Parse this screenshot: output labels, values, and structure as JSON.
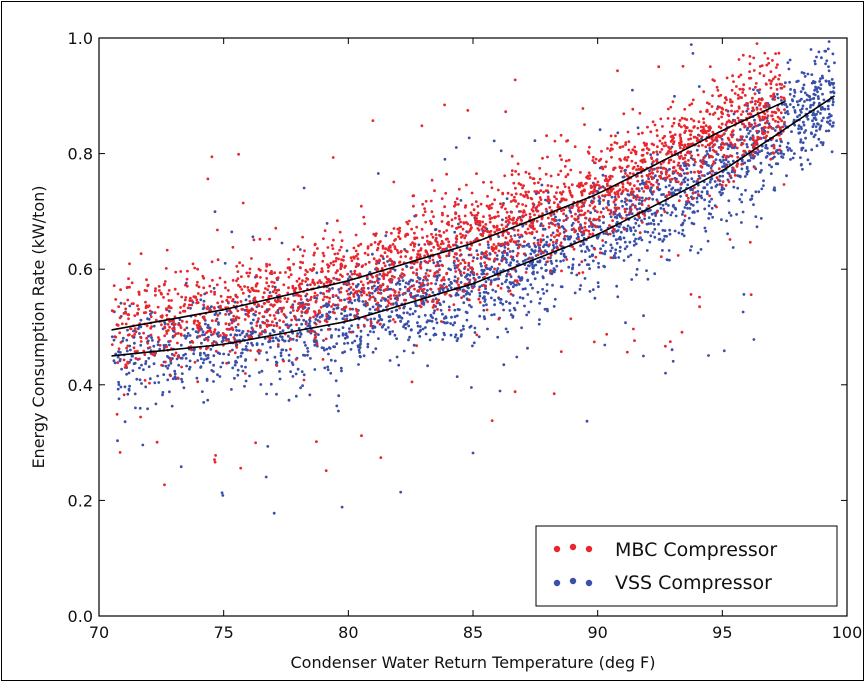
{
  "chart_data": {
    "type": "scatter",
    "title": "",
    "xlabel": "Condenser Water Return Temperature (deg F)",
    "ylabel": "Energy Consumption Rate (kW/ton)",
    "xlim": [
      70,
      100
    ],
    "ylim": [
      0.0,
      1.0
    ],
    "x_ticks": [
      "70",
      "75",
      "80",
      "85",
      "90",
      "95",
      "100"
    ],
    "y_ticks": [
      "0.0",
      "0.2",
      "0.4",
      "0.6",
      "0.8",
      "1.0"
    ],
    "grid": false,
    "legend_position": "lower-right",
    "series": [
      {
        "name": "MBC Compressor",
        "color": "#e8262e",
        "marker": "dot",
        "x_range": [
          70.5,
          97.5
        ],
        "fit_curve": [
          [
            70.5,
            0.495
          ],
          [
            75,
            0.53
          ],
          [
            80,
            0.58
          ],
          [
            85,
            0.645
          ],
          [
            90,
            0.73
          ],
          [
            95,
            0.84
          ],
          [
            97.5,
            0.89
          ]
        ]
      },
      {
        "name": "VSS Compressor",
        "color": "#3a4fa8",
        "marker": "dot",
        "x_range": [
          70.5,
          99.5
        ],
        "fit_curve": [
          [
            70.5,
            0.45
          ],
          [
            75,
            0.47
          ],
          [
            80,
            0.51
          ],
          [
            85,
            0.575
          ],
          [
            90,
            0.66
          ],
          [
            95,
            0.77
          ],
          [
            99.5,
            0.9
          ]
        ]
      }
    ],
    "legend": [
      "MBC Compressor",
      "VSS Compressor"
    ]
  }
}
